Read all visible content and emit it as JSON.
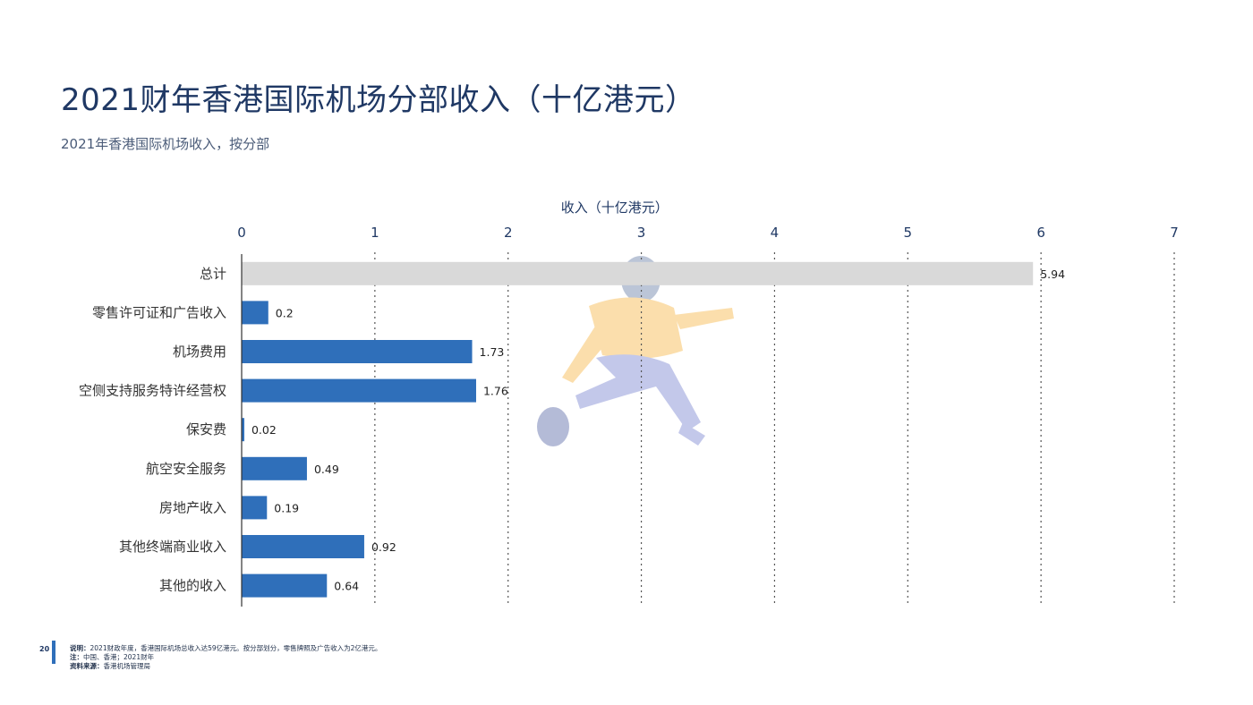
{
  "page": {
    "title": "2021财年香港国际机场分部收入（十亿港元）",
    "subtitle": "2021年香港国际机场收入，按分部",
    "page_number": "20"
  },
  "footer": {
    "note_label": "说明：",
    "note_text": "2021财政年度，香港国际机场总收入达59亿港元。按分部划分，零售牌照及广告收入为2亿港元。",
    "remark_label": "注：",
    "remark_text": "中国、香港；2021财年",
    "source_label": "资料来源：",
    "source_text": "香港机场管理局"
  },
  "colors": {
    "bar": "#2f6fba",
    "total_bar": "#d9d9d9",
    "text_dark": "#1f3864",
    "gridline": "#555555"
  },
  "chart_data": {
    "type": "bar",
    "orientation": "horizontal",
    "title": "",
    "xlabel": "收入（十亿港元）",
    "ylabel": "",
    "xlim": [
      0,
      7
    ],
    "xticks": [
      "0",
      "1",
      "2",
      "3",
      "4",
      "5",
      "6",
      "7"
    ],
    "grid": true,
    "axis_position": "top",
    "categories": [
      "总计",
      "零售许可证和广告收入",
      "机场费用",
      "空侧支持服务特许经营权",
      "保安费",
      "航空安全服务",
      "房地产收入",
      "其他终端商业收入",
      "其他的收入"
    ],
    "values": [
      5.94,
      0.2,
      1.73,
      1.76,
      0.02,
      0.49,
      0.19,
      0.92,
      0.64
    ],
    "value_labels": [
      "5.94",
      "0.2",
      "1.73",
      "1.76",
      "0.02",
      "0.49",
      "0.19",
      "0.92",
      "0.64"
    ]
  }
}
